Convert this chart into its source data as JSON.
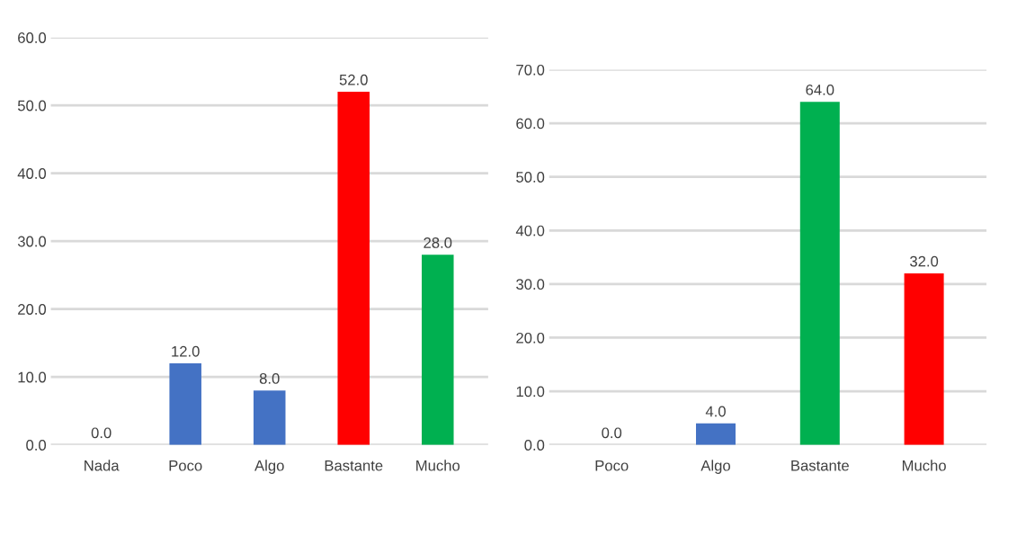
{
  "chart_data": [
    {
      "type": "bar",
      "categories": [
        "Nada",
        "Poco",
        "Algo",
        "Bastante",
        "Mucho"
      ],
      "values": [
        0.0,
        12.0,
        8.0,
        52.0,
        28.0
      ],
      "colors": [
        "#4472c4",
        "#4472c4",
        "#4472c4",
        "#ff0000",
        "#00b050"
      ],
      "ylim": [
        0,
        60
      ],
      "yticks": [
        {
          "value": 0,
          "label": "0.0"
        },
        {
          "value": 10,
          "label": "10.0"
        },
        {
          "value": 20,
          "label": "20.0"
        },
        {
          "value": 30,
          "label": "30.0"
        },
        {
          "value": 40,
          "label": "40.0"
        },
        {
          "value": 50,
          "label": "50.0"
        },
        {
          "value": 60,
          "label": "60.0"
        }
      ],
      "grid": "y",
      "value_labels": [
        "0.0",
        "12.0",
        "8.0",
        "52.0",
        "28.0"
      ]
    },
    {
      "type": "bar",
      "categories": [
        "Poco",
        "Algo",
        "Bastante",
        "Mucho"
      ],
      "values": [
        0.0,
        4.0,
        64.0,
        32.0
      ],
      "colors": [
        "#4472c4",
        "#4472c4",
        "#00b050",
        "#ff0000"
      ],
      "ylim": [
        0,
        70
      ],
      "yticks": [
        {
          "value": 0,
          "label": "0.0"
        },
        {
          "value": 10,
          "label": "10.0"
        },
        {
          "value": 20,
          "label": "20.0"
        },
        {
          "value": 30,
          "label": "30.0"
        },
        {
          "value": 40,
          "label": "40.0"
        },
        {
          "value": 50,
          "label": "50.0"
        },
        {
          "value": 60,
          "label": "60.0"
        },
        {
          "value": 70,
          "label": "70.0"
        }
      ],
      "grid": "y",
      "value_labels": [
        "0.0",
        "4.0",
        "64.0",
        "32.0"
      ]
    }
  ]
}
